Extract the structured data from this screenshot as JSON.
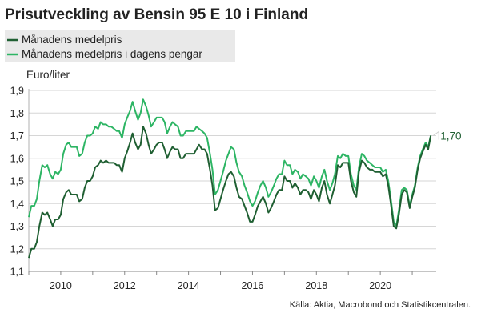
{
  "chart_data": {
    "type": "line",
    "title": "Prisutveckling av Bensin 95 E 10 i Finland",
    "ylabel": "Euro/liter",
    "ylim": [
      1.1,
      1.9
    ],
    "yticks": [
      "1,1",
      "1,2",
      "1,3",
      "1,4",
      "1,5",
      "1,6",
      "1,7",
      "1,8",
      "1,9"
    ],
    "xlim": [
      2009.0,
      2021.75
    ],
    "xticks": [
      "2010",
      "2012",
      "2014",
      "2016",
      "2018",
      "2020"
    ],
    "source": "Källa: Aktia, Macrobond och Statistikcentralen.",
    "end_label": "1,70",
    "grid": "horizontal",
    "legend_position": "top-left",
    "series": [
      {
        "name": "Månadens medelpris",
        "color": "#1f5f32",
        "x": [
          2009.0,
          2009.08,
          2009.17,
          2009.25,
          2009.33,
          2009.42,
          2009.5,
          2009.58,
          2009.67,
          2009.75,
          2009.83,
          2009.92,
          2010.0,
          2010.08,
          2010.17,
          2010.25,
          2010.33,
          2010.42,
          2010.5,
          2010.58,
          2010.67,
          2010.75,
          2010.83,
          2010.92,
          2011.0,
          2011.08,
          2011.17,
          2011.25,
          2011.33,
          2011.42,
          2011.5,
          2011.58,
          2011.67,
          2011.75,
          2011.83,
          2011.92,
          2012.0,
          2012.08,
          2012.17,
          2012.25,
          2012.33,
          2012.42,
          2012.5,
          2012.58,
          2012.67,
          2012.75,
          2012.83,
          2012.92,
          2013.0,
          2013.08,
          2013.17,
          2013.25,
          2013.33,
          2013.42,
          2013.5,
          2013.58,
          2013.67,
          2013.75,
          2013.83,
          2013.92,
          2014.0,
          2014.08,
          2014.17,
          2014.25,
          2014.33,
          2014.42,
          2014.5,
          2014.58,
          2014.67,
          2014.75,
          2014.83,
          2014.92,
          2015.0,
          2015.08,
          2015.17,
          2015.25,
          2015.33,
          2015.42,
          2015.5,
          2015.58,
          2015.67,
          2015.75,
          2015.83,
          2015.92,
          2016.0,
          2016.08,
          2016.17,
          2016.25,
          2016.33,
          2016.42,
          2016.5,
          2016.58,
          2016.67,
          2016.75,
          2016.83,
          2016.92,
          2017.0,
          2017.08,
          2017.17,
          2017.25,
          2017.33,
          2017.42,
          2017.5,
          2017.58,
          2017.67,
          2017.75,
          2017.83,
          2017.92,
          2018.0,
          2018.08,
          2018.17,
          2018.25,
          2018.33,
          2018.42,
          2018.5,
          2018.58,
          2018.67,
          2018.75,
          2018.83,
          2018.92,
          2019.0,
          2019.08,
          2019.17,
          2019.25,
          2019.33,
          2019.42,
          2019.5,
          2019.58,
          2019.67,
          2019.75,
          2019.83,
          2019.92,
          2020.0,
          2020.08,
          2020.17,
          2020.25,
          2020.33,
          2020.42,
          2020.5,
          2020.58,
          2020.67,
          2020.75,
          2020.83,
          2020.92,
          2021.0,
          2021.08,
          2021.17,
          2021.25,
          2021.33,
          2021.42,
          2021.5,
          2021.58
        ],
        "values": [
          1.16,
          1.2,
          1.2,
          1.23,
          1.3,
          1.36,
          1.35,
          1.36,
          1.33,
          1.3,
          1.33,
          1.33,
          1.35,
          1.42,
          1.45,
          1.46,
          1.44,
          1.44,
          1.44,
          1.41,
          1.42,
          1.47,
          1.5,
          1.5,
          1.52,
          1.56,
          1.57,
          1.59,
          1.58,
          1.59,
          1.58,
          1.58,
          1.58,
          1.57,
          1.57,
          1.54,
          1.6,
          1.63,
          1.67,
          1.71,
          1.67,
          1.64,
          1.66,
          1.74,
          1.71,
          1.66,
          1.62,
          1.64,
          1.66,
          1.67,
          1.67,
          1.64,
          1.6,
          1.63,
          1.65,
          1.64,
          1.64,
          1.6,
          1.6,
          1.62,
          1.62,
          1.62,
          1.62,
          1.64,
          1.66,
          1.64,
          1.64,
          1.62,
          1.55,
          1.48,
          1.37,
          1.38,
          1.42,
          1.46,
          1.5,
          1.53,
          1.54,
          1.52,
          1.47,
          1.43,
          1.42,
          1.39,
          1.36,
          1.32,
          1.32,
          1.35,
          1.39,
          1.41,
          1.43,
          1.4,
          1.36,
          1.38,
          1.41,
          1.44,
          1.46,
          1.46,
          1.52,
          1.5,
          1.5,
          1.47,
          1.49,
          1.47,
          1.44,
          1.46,
          1.46,
          1.45,
          1.42,
          1.46,
          1.44,
          1.41,
          1.47,
          1.5,
          1.44,
          1.4,
          1.44,
          1.48,
          1.57,
          1.56,
          1.58,
          1.58,
          1.58,
          1.5,
          1.45,
          1.43,
          1.54,
          1.59,
          1.58,
          1.56,
          1.55,
          1.55,
          1.54,
          1.54,
          1.54,
          1.52,
          1.53,
          1.48,
          1.4,
          1.3,
          1.29,
          1.35,
          1.44,
          1.46,
          1.45,
          1.38,
          1.43,
          1.47,
          1.55,
          1.6,
          1.63,
          1.66,
          1.64,
          1.7
        ]
      },
      {
        "name": "Månadens medelpris i dagens pengar",
        "color": "#2db564",
        "x": [
          2009.0,
          2009.08,
          2009.17,
          2009.25,
          2009.33,
          2009.42,
          2009.5,
          2009.58,
          2009.67,
          2009.75,
          2009.83,
          2009.92,
          2010.0,
          2010.08,
          2010.17,
          2010.25,
          2010.33,
          2010.42,
          2010.5,
          2010.58,
          2010.67,
          2010.75,
          2010.83,
          2010.92,
          2011.0,
          2011.08,
          2011.17,
          2011.25,
          2011.33,
          2011.42,
          2011.5,
          2011.58,
          2011.67,
          2011.75,
          2011.83,
          2011.92,
          2012.0,
          2012.08,
          2012.17,
          2012.25,
          2012.33,
          2012.42,
          2012.5,
          2012.58,
          2012.67,
          2012.75,
          2012.83,
          2012.92,
          2013.0,
          2013.08,
          2013.17,
          2013.25,
          2013.33,
          2013.42,
          2013.5,
          2013.58,
          2013.67,
          2013.75,
          2013.83,
          2013.92,
          2014.0,
          2014.08,
          2014.17,
          2014.25,
          2014.33,
          2014.42,
          2014.5,
          2014.58,
          2014.67,
          2014.75,
          2014.83,
          2014.92,
          2015.0,
          2015.08,
          2015.17,
          2015.25,
          2015.33,
          2015.42,
          2015.5,
          2015.58,
          2015.67,
          2015.75,
          2015.83,
          2015.92,
          2016.0,
          2016.08,
          2016.17,
          2016.25,
          2016.33,
          2016.42,
          2016.5,
          2016.58,
          2016.67,
          2016.75,
          2016.83,
          2016.92,
          2017.0,
          2017.08,
          2017.17,
          2017.25,
          2017.33,
          2017.42,
          2017.5,
          2017.58,
          2017.67,
          2017.75,
          2017.83,
          2017.92,
          2018.0,
          2018.08,
          2018.17,
          2018.25,
          2018.33,
          2018.42,
          2018.5,
          2018.58,
          2018.67,
          2018.75,
          2018.83,
          2018.92,
          2019.0,
          2019.08,
          2019.17,
          2019.25,
          2019.33,
          2019.42,
          2019.5,
          2019.58,
          2019.67,
          2019.75,
          2019.83,
          2019.92,
          2020.0,
          2020.08,
          2020.17,
          2020.25,
          2020.33,
          2020.42,
          2020.5,
          2020.58,
          2020.67,
          2020.75,
          2020.83,
          2020.92,
          2021.0,
          2021.08,
          2021.17,
          2021.25,
          2021.33,
          2021.42,
          2021.5,
          2021.58
        ],
        "values": [
          1.34,
          1.39,
          1.39,
          1.42,
          1.5,
          1.57,
          1.56,
          1.57,
          1.53,
          1.51,
          1.54,
          1.53,
          1.55,
          1.62,
          1.66,
          1.67,
          1.65,
          1.65,
          1.65,
          1.61,
          1.62,
          1.67,
          1.7,
          1.7,
          1.71,
          1.74,
          1.73,
          1.76,
          1.75,
          1.75,
          1.74,
          1.74,
          1.73,
          1.72,
          1.72,
          1.69,
          1.75,
          1.78,
          1.81,
          1.85,
          1.81,
          1.77,
          1.8,
          1.86,
          1.83,
          1.79,
          1.74,
          1.76,
          1.78,
          1.78,
          1.78,
          1.76,
          1.71,
          1.74,
          1.76,
          1.75,
          1.74,
          1.7,
          1.7,
          1.72,
          1.72,
          1.72,
          1.72,
          1.74,
          1.73,
          1.72,
          1.71,
          1.69,
          1.62,
          1.55,
          1.44,
          1.46,
          1.5,
          1.54,
          1.59,
          1.62,
          1.65,
          1.64,
          1.58,
          1.54,
          1.52,
          1.48,
          1.45,
          1.41,
          1.39,
          1.41,
          1.45,
          1.48,
          1.5,
          1.47,
          1.43,
          1.45,
          1.48,
          1.51,
          1.53,
          1.53,
          1.59,
          1.57,
          1.57,
          1.53,
          1.55,
          1.54,
          1.51,
          1.53,
          1.52,
          1.51,
          1.48,
          1.52,
          1.5,
          1.47,
          1.52,
          1.55,
          1.5,
          1.46,
          1.49,
          1.53,
          1.61,
          1.6,
          1.62,
          1.61,
          1.61,
          1.53,
          1.48,
          1.46,
          1.56,
          1.62,
          1.61,
          1.59,
          1.58,
          1.57,
          1.56,
          1.56,
          1.56,
          1.54,
          1.55,
          1.5,
          1.42,
          1.32,
          1.3,
          1.37,
          1.46,
          1.47,
          1.46,
          1.39,
          1.44,
          1.48,
          1.56,
          1.61,
          1.64,
          1.67,
          1.65,
          1.7
        ]
      }
    ]
  }
}
